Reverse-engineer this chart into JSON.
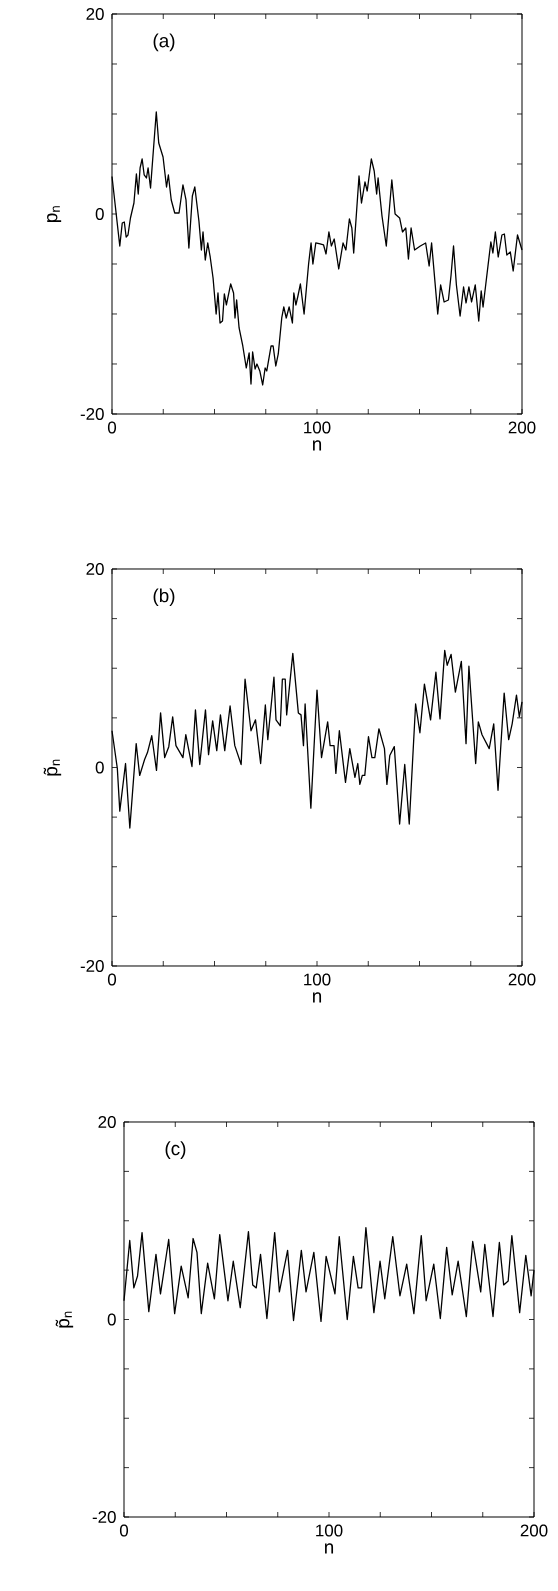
{
  "chart_data": [
    {
      "type": "line",
      "xlabel": "n",
      "ylabel": "p$_{n}$",
      "annotations": [
        "(a)"
      ],
      "color": "#000000",
      "xlim": [
        0,
        200
      ],
      "ylim": [
        -20,
        20
      ],
      "xticks": [
        0,
        {
          "value": 25,
          "label": null
        },
        {
          "value": 50,
          "label": null
        },
        {
          "value": 75,
          "label": null
        },
        100,
        {
          "value": 125,
          "label": null
        },
        {
          "value": 150,
          "label": null
        },
        {
          "value": 175,
          "label": null
        },
        200
      ],
      "yticks": [
        -20,
        {
          "value": -15,
          "label": null
        },
        {
          "value": -10,
          "label": null
        },
        {
          "value": -5,
          "label": null
        },
        0,
        {
          "value": 5,
          "label": null
        },
        {
          "value": 10,
          "label": null
        },
        {
          "value": 15,
          "label": null
        },
        20
      ],
      "x": [
        0,
        3.8,
        5,
        6,
        6.9,
        7.8,
        9,
        10.7,
        11.9,
        12.8,
        13.7,
        14.7,
        15.7,
        16.8,
        17.6,
        18.8,
        20.2,
        21.6,
        22.8,
        24.9,
        26.6,
        27.5,
        28.9,
        30.6,
        32.7,
        34.6,
        36.1,
        37.5,
        39.2,
        40.4,
        42.4,
        43.6,
        44.4,
        45.5,
        46.7,
        47.9,
        49.3,
        50.8,
        51.7,
        52.7,
        53.9,
        54.8,
        55.8,
        57.9,
        59.3,
        60,
        60.8,
        62,
        63.8,
        65.5,
        66.9,
        67.8,
        68.6,
        69.8,
        70.7,
        72.1,
        73.5,
        74.7,
        75.5,
        77.6,
        78.6,
        79.9,
        81.1,
        82.8,
        83.8,
        85,
        86.4,
        88,
        88.7,
        89.7,
        90.7,
        91.9,
        93.7,
        95.9,
        97.1,
        98,
        99.4,
        101.5,
        103.2,
        104.4,
        105.8,
        107,
        108.4,
        110.6,
        112.7,
        114.1,
        115.8,
        117,
        117.9,
        120.5,
        121.7,
        123.4,
        124.5,
        126.5,
        127.9,
        129.1,
        129.8,
        131.7,
        133.8,
        136.5,
        138.1,
        140.3,
        141.7,
        143.3,
        144.6,
        145.9,
        147.6,
        150.4,
        153,
        154.7,
        155.9,
        158.9,
        160.3,
        162,
        164.1,
        165.4,
        166.6,
        168,
        169.8,
        171.5,
        172.7,
        174.1,
        175.4,
        177.2,
        178.9,
        180.1,
        181,
        184.8,
        185.8,
        187,
        188.4,
        190.2,
        191.4,
        192.6,
        194.3,
        195.7,
        197.8,
        200
      ],
      "values": [
        3.75,
        -3.2,
        -0.9,
        -0.8,
        -2.3,
        -2.1,
        -0.4,
        1.1,
        4,
        2,
        4.6,
        5.5,
        3.9,
        3.6,
        4.6,
        2.6,
        6.4,
        10.2,
        7.1,
        5.7,
        2.7,
        3.9,
        1.4,
        0.1,
        0.1,
        2.9,
        1.4,
        -3.4,
        1.8,
        2.7,
        -0.7,
        -3.6,
        -1.8,
        -4.6,
        -2.9,
        -4.3,
        -6.4,
        -10,
        -7.9,
        -10.9,
        -10.7,
        -8,
        -9.1,
        -7,
        -7.9,
        -10.4,
        -8.6,
        -11.4,
        -13.2,
        -15.4,
        -13.9,
        -17,
        -13.8,
        -15.5,
        -15,
        -15.7,
        -17.1,
        -15.4,
        -15.7,
        -13.2,
        -13.2,
        -15.2,
        -14,
        -10.4,
        -9.3,
        -10.4,
        -9.3,
        -10.9,
        -7.9,
        -9.1,
        -8.2,
        -7,
        -10,
        -5,
        -2.9,
        -5,
        -2.9,
        -3,
        -3.1,
        -4,
        -1.8,
        -3.2,
        -2.5,
        -5.5,
        -2.9,
        -3.6,
        -0.5,
        -1.4,
        -3.9,
        3.8,
        1.1,
        3.2,
        2.3,
        5.5,
        4.3,
        2,
        3.6,
        -0.2,
        -3.2,
        3.4,
        0,
        -0.4,
        -1.8,
        -1.4,
        -4.5,
        -1.4,
        -3.6,
        -3.2,
        -2.9,
        -5.2,
        -2.9,
        -10,
        -7.1,
        -8.8,
        -8.6,
        -6.1,
        -3.2,
        -7.1,
        -10.2,
        -7.3,
        -8.9,
        -7.3,
        -8.8,
        -7.1,
        -10.7,
        -7.7,
        -9.3,
        -2.8,
        -3.9,
        -1.8,
        -4.3,
        -2.1,
        -2,
        -4.1,
        -3.8,
        -5.7,
        -2.1,
        -3.6
      ]
    },
    {
      "type": "line",
      "xlabel": "n",
      "ylabel": "p̃$_{n}$",
      "annotations": [
        "(b)"
      ],
      "color": "#000000",
      "xlim": [
        0,
        200
      ],
      "ylim": [
        -20,
        20
      ],
      "xticks": [
        0,
        {
          "value": 25,
          "label": null
        },
        {
          "value": 50,
          "label": null
        },
        {
          "value": 75,
          "label": null
        },
        100,
        {
          "value": 125,
          "label": null
        },
        {
          "value": 150,
          "label": null
        },
        {
          "value": 175,
          "label": null
        },
        200
      ],
      "yticks": [
        -20,
        {
          "value": -15,
          "label": null
        },
        {
          "value": -10,
          "label": null
        },
        {
          "value": -5,
          "label": null
        },
        0,
        {
          "value": 5,
          "label": null
        },
        {
          "value": 10,
          "label": null
        },
        {
          "value": 15,
          "label": null
        },
        20
      ],
      "x": [
        0,
        2.6,
        3.8,
        6.6,
        8.7,
        11.3,
        11.8,
        13.5,
        15.9,
        17.3,
        19.4,
        21.7,
        23.7,
        25.7,
        27.7,
        29.6,
        31.2,
        34.6,
        36,
        39,
        40.7,
        42.8,
        45.6,
        47.1,
        49.1,
        51.1,
        52.9,
        55,
        57.6,
        59.9,
        63,
        64.9,
        67.8,
        70,
        72.5,
        74.8,
        76,
        79,
        80,
        82.1,
        83.1,
        84.5,
        85.2,
        88.2,
        90.9,
        92.2,
        93.4,
        94.2,
        97,
        100,
        102.2,
        105.2,
        106.4,
        108.3,
        109.2,
        110.9,
        113.9,
        116,
        118.5,
        119.9,
        120.9,
        122.1,
        123.3,
        125.1,
        126.8,
        128.2,
        130.2,
        132.9,
        134.1,
        135.5,
        137.7,
        140.3,
        142.8,
        145,
        148.1,
        150.2,
        152.4,
        155.4,
        158,
        160,
        162.3,
        163.5,
        165.4,
        167.5,
        170.4,
        172.7,
        174.1,
        177.4,
        178.7,
        180.5,
        184,
        186.2,
        188.3,
        191.3,
        193.5,
        195.2,
        197.3,
        198.7,
        200
      ],
      "values": [
        3.7,
        -0.1,
        -4.4,
        0.4,
        -6.1,
        1,
        2.4,
        -0.8,
        0.8,
        1.5,
        3.2,
        -0.3,
        5.5,
        1,
        2.1,
        5.1,
        2.2,
        1,
        3.3,
        0.1,
        5.8,
        0.3,
        5.8,
        1.3,
        4.7,
        1.7,
        5.3,
        1.7,
        6.2,
        2.2,
        0.3,
        8.9,
        3.7,
        4.8,
        0.4,
        6.3,
        2.8,
        9.1,
        4.8,
        4.2,
        8.9,
        8.9,
        5.3,
        11.5,
        5.5,
        5.3,
        2.2,
        6.4,
        -4.1,
        7.8,
        1,
        4.6,
        2.2,
        2.2,
        -0.6,
        3.7,
        -1.5,
        1.9,
        -1,
        0.4,
        -1.7,
        -0.8,
        -0.8,
        3.1,
        1,
        1,
        3.9,
        1.9,
        -1.7,
        1.2,
        2.1,
        -5.7,
        0.3,
        -5.7,
        6.4,
        3.5,
        8.4,
        4.8,
        9.6,
        4.9,
        11.8,
        10.3,
        11.4,
        7.6,
        10.7,
        2.4,
        10.2,
        0.4,
        4.6,
        3.3,
        1.9,
        4.4,
        -2.3,
        7.5,
        2.8,
        4.4,
        7.3,
        5.1,
        6.6
      ]
    },
    {
      "type": "line",
      "xlabel": "n",
      "ylabel": "p̃$_{n}$",
      "annotations": [
        "(c)"
      ],
      "color": "#000000",
      "xlim": [
        0,
        200
      ],
      "ylim": [
        -20,
        20
      ],
      "xticks": [
        0,
        {
          "value": 25,
          "label": null
        },
        {
          "value": 50,
          "label": null
        },
        {
          "value": 75,
          "label": null
        },
        100,
        {
          "value": 125,
          "label": null
        },
        {
          "value": 150,
          "label": null
        },
        {
          "value": 175,
          "label": null
        },
        200
      ],
      "yticks": [
        -20,
        {
          "value": -15,
          "label": null
        },
        {
          "value": -10,
          "label": null
        },
        {
          "value": -5,
          "label": null
        },
        0,
        {
          "value": 5,
          "label": null
        },
        {
          "value": 10,
          "label": null
        },
        {
          "value": 15,
          "label": null
        },
        20
      ],
      "x": [
        0,
        2.8,
        4.8,
        6.6,
        8.8,
        12.1,
        15.6,
        17.8,
        21.8,
        24.7,
        27.9,
        31.3,
        33.7,
        35.6,
        37.7,
        40.8,
        44.1,
        46.7,
        50.7,
        53.3,
        56.7,
        60.7,
        62.8,
        64.5,
        66.6,
        69.7,
        73.5,
        75.8,
        79.8,
        82.7,
        86.5,
        88.8,
        92.6,
        96.1,
        98.6,
        102.9,
        105,
        108.9,
        111.9,
        114.2,
        115.9,
        118,
        121.9,
        124.9,
        127.2,
        131.1,
        134.6,
        137.9,
        141.4,
        145,
        147.4,
        151.1,
        154.3,
        157.4,
        160.1,
        163,
        167,
        170.1,
        174,
        176,
        180,
        183.1,
        185.2,
        187.4,
        189.2,
        193,
        196,
        198.6,
        200
      ],
      "values": [
        1.9,
        8,
        3.2,
        4.4,
        8.8,
        0.8,
        6.6,
        2.6,
        8.1,
        0.6,
        5.4,
        2.2,
        8.2,
        6.8,
        0.6,
        5.7,
        2.1,
        8.6,
        1.9,
        5.9,
        1.2,
        8.9,
        3.5,
        3.2,
        6.6,
        0.1,
        8.8,
        2.8,
        7,
        -0.1,
        7,
        2.8,
        6.8,
        -0.2,
        6.4,
        2.6,
        8.4,
        0,
        6.4,
        3.2,
        3.2,
        9.3,
        0.7,
        5.9,
        2.1,
        8.4,
        2.4,
        5.6,
        0.6,
        8.5,
        1.9,
        5.6,
        0.1,
        7.3,
        2.5,
        5.9,
        0.3,
        7.9,
        2.8,
        7.6,
        0.3,
        7.8,
        3.5,
        3.9,
        8.5,
        0.7,
        6.5,
        2.4,
        5
      ]
    }
  ]
}
